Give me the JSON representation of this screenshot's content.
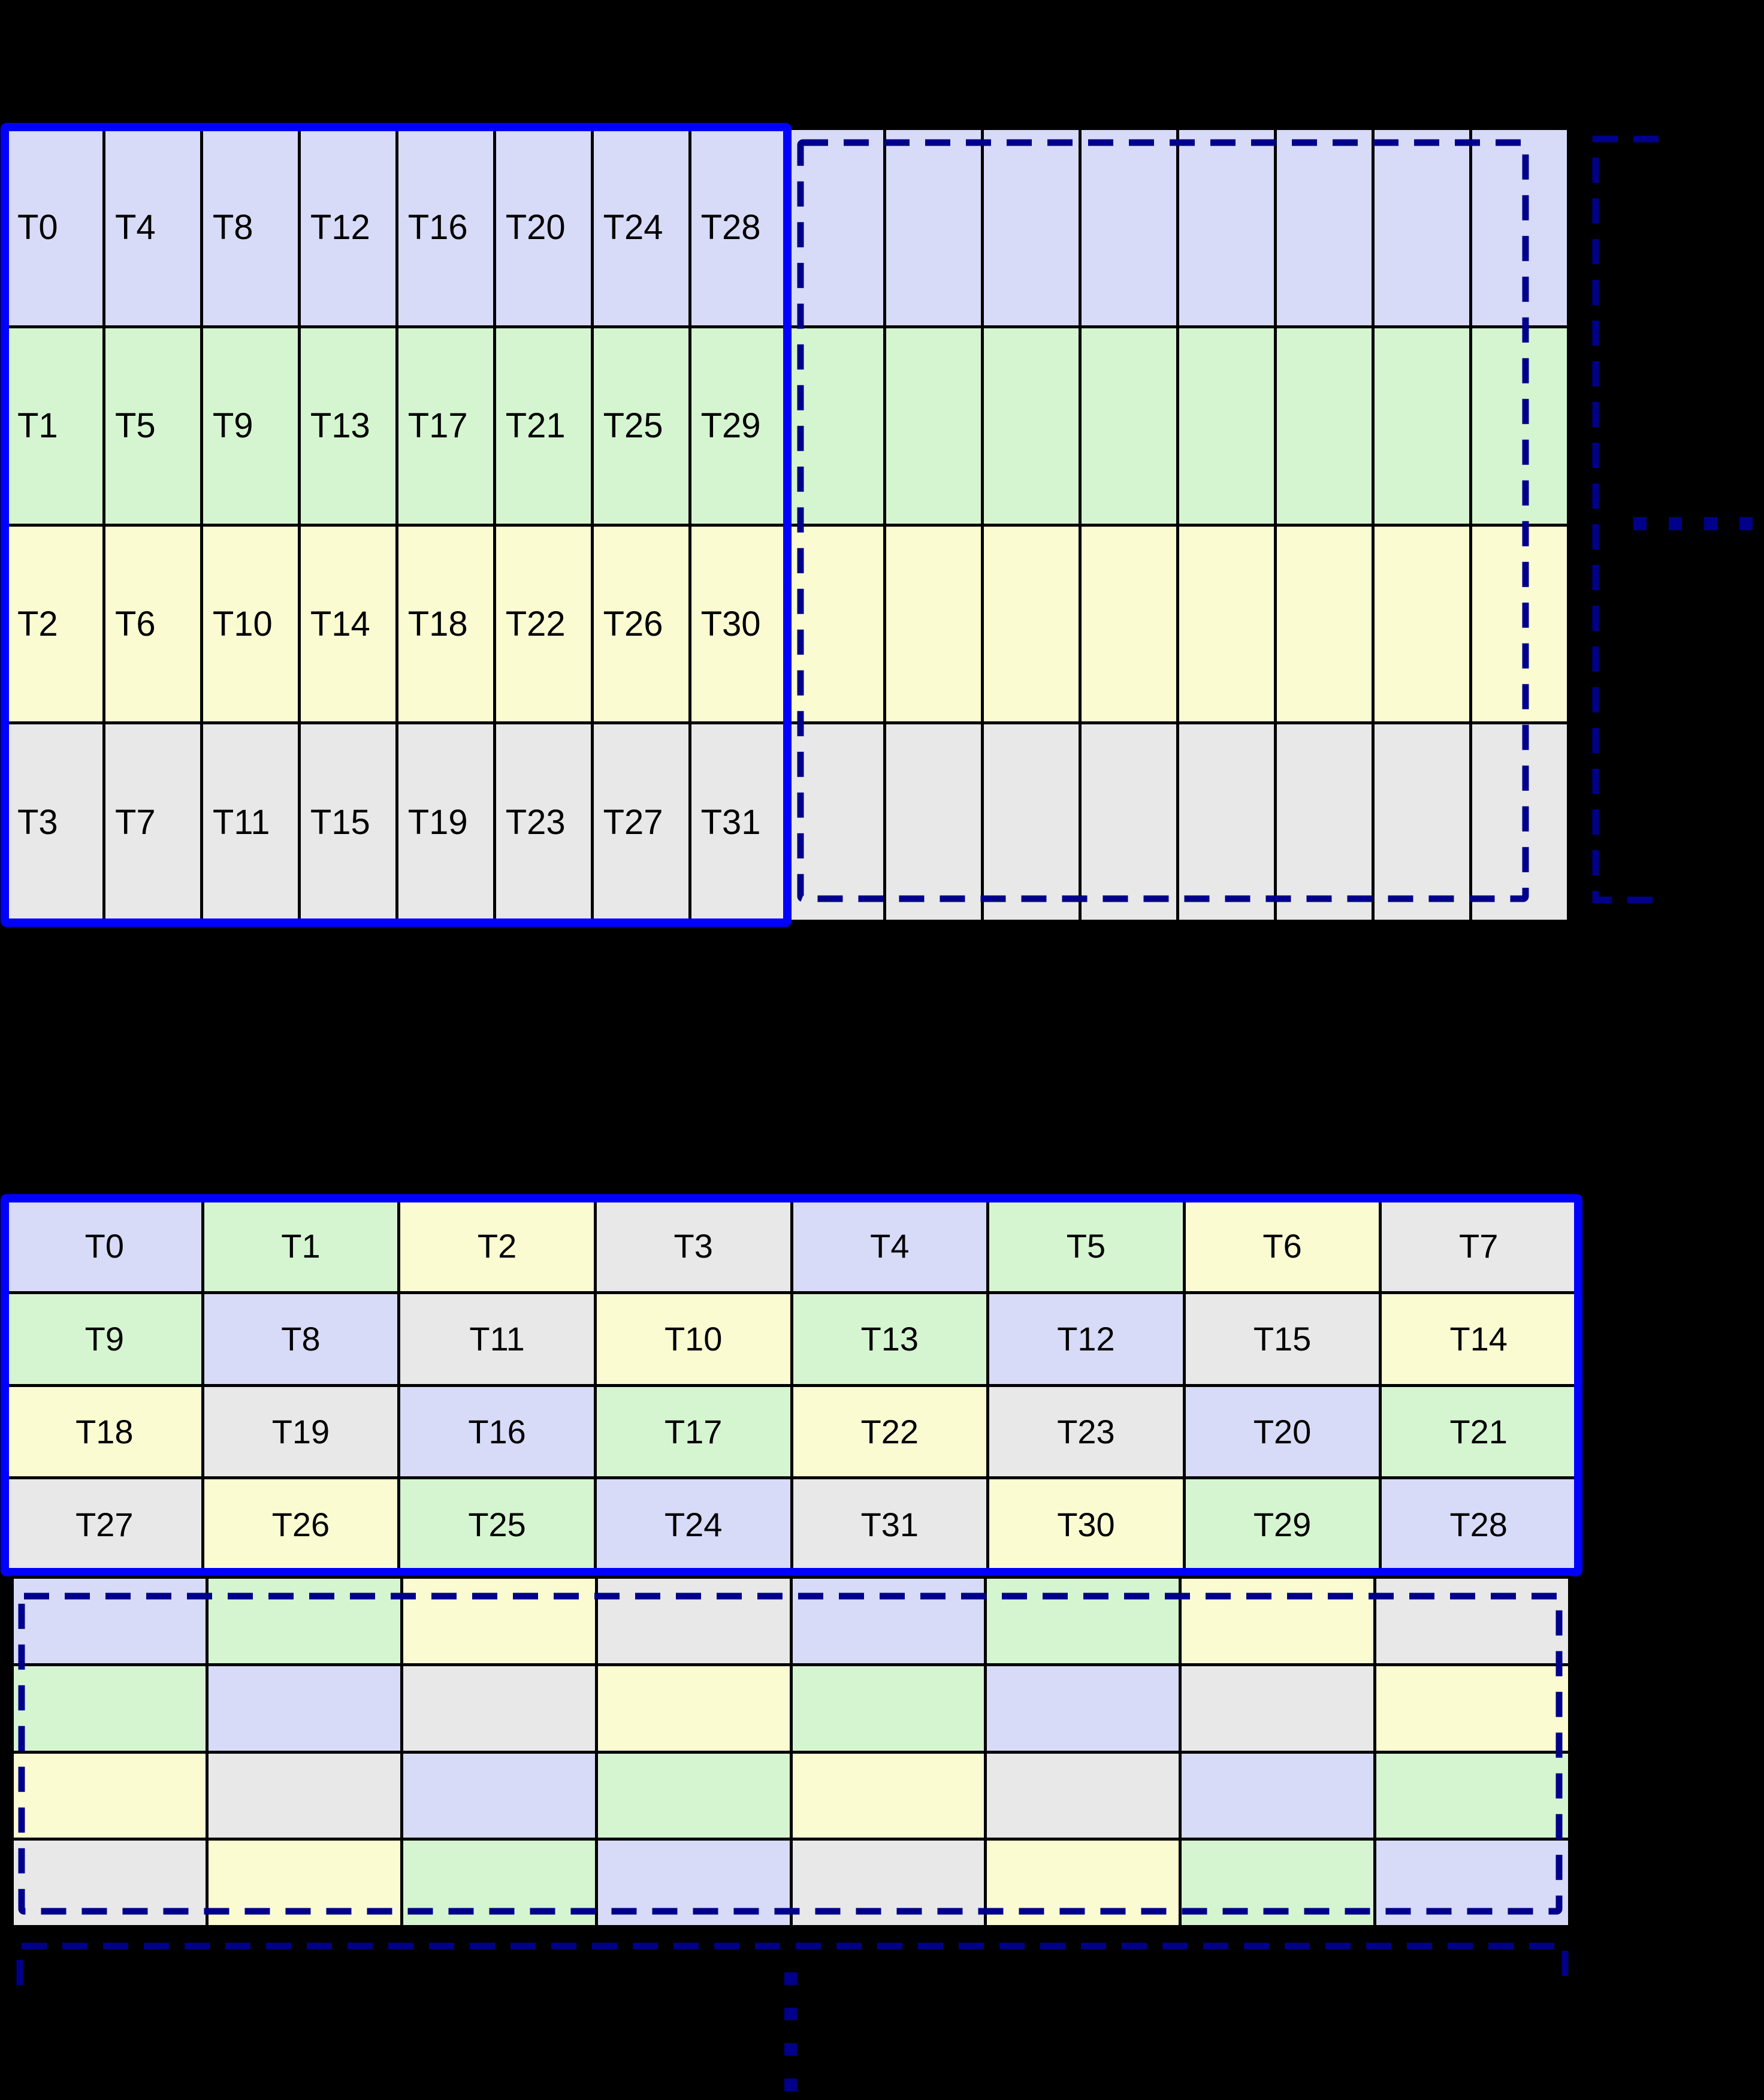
{
  "colors": {
    "background": "#000000",
    "palette": [
      "#d7dbf7",
      "#d5f5d0",
      "#fbfbd2",
      "#e8e8e8"
    ],
    "solid_border": "#0000ff",
    "dashed_border": "#00008b",
    "grid_line": "#000000",
    "text": "#000000"
  },
  "top_grid": {
    "rows": 4,
    "cols": 16,
    "labeled_cols": 8,
    "row_colors": [
      0,
      1,
      2,
      3
    ],
    "labels": [
      [
        "T0",
        "T4",
        "T8",
        "T12",
        "T16",
        "T20",
        "T24",
        "T28"
      ],
      [
        "T1",
        "T5",
        "T9",
        "T13",
        "T17",
        "T21",
        "T25",
        "T29"
      ],
      [
        "T2",
        "T6",
        "T10",
        "T14",
        "T18",
        "T22",
        "T26",
        "T30"
      ],
      [
        "T3",
        "T7",
        "T11",
        "T15",
        "T19",
        "T23",
        "T27",
        "T31"
      ]
    ]
  },
  "bottom_grid": {
    "rows": [
      [
        {
          "t": "T0",
          "c": 0
        },
        {
          "t": "T1",
          "c": 1
        },
        {
          "t": "T2",
          "c": 2
        },
        {
          "t": "T3",
          "c": 3
        },
        {
          "t": "T4",
          "c": 0
        },
        {
          "t": "T5",
          "c": 1
        },
        {
          "t": "T6",
          "c": 2
        },
        {
          "t": "T7",
          "c": 3
        }
      ],
      [
        {
          "t": "T9",
          "c": 1
        },
        {
          "t": "T8",
          "c": 0
        },
        {
          "t": "T11",
          "c": 3
        },
        {
          "t": "T10",
          "c": 2
        },
        {
          "t": "T13",
          "c": 1
        },
        {
          "t": "T12",
          "c": 0
        },
        {
          "t": "T15",
          "c": 3
        },
        {
          "t": "T14",
          "c": 2
        }
      ],
      [
        {
          "t": "T18",
          "c": 2
        },
        {
          "t": "T19",
          "c": 3
        },
        {
          "t": "T16",
          "c": 0
        },
        {
          "t": "T17",
          "c": 1
        },
        {
          "t": "T22",
          "c": 2
        },
        {
          "t": "T23",
          "c": 3
        },
        {
          "t": "T20",
          "c": 0
        },
        {
          "t": "T21",
          "c": 1
        }
      ],
      [
        {
          "t": "T27",
          "c": 3
        },
        {
          "t": "T26",
          "c": 2
        },
        {
          "t": "T25",
          "c": 1
        },
        {
          "t": "T24",
          "c": 0
        },
        {
          "t": "T31",
          "c": 3
        },
        {
          "t": "T30",
          "c": 2
        },
        {
          "t": "T29",
          "c": 1
        },
        {
          "t": "T28",
          "c": 0
        }
      ]
    ]
  },
  "ghost_block_grid": {
    "color_rows": [
      [
        0,
        1,
        2,
        3,
        0,
        1,
        2,
        3
      ],
      [
        1,
        0,
        3,
        2,
        1,
        0,
        3,
        2
      ],
      [
        2,
        3,
        0,
        1,
        2,
        3,
        0,
        1
      ],
      [
        3,
        2,
        1,
        0,
        3,
        2,
        1,
        0
      ]
    ]
  },
  "continuation": {
    "horizontal_dots": 4,
    "vertical_dots": 4
  }
}
